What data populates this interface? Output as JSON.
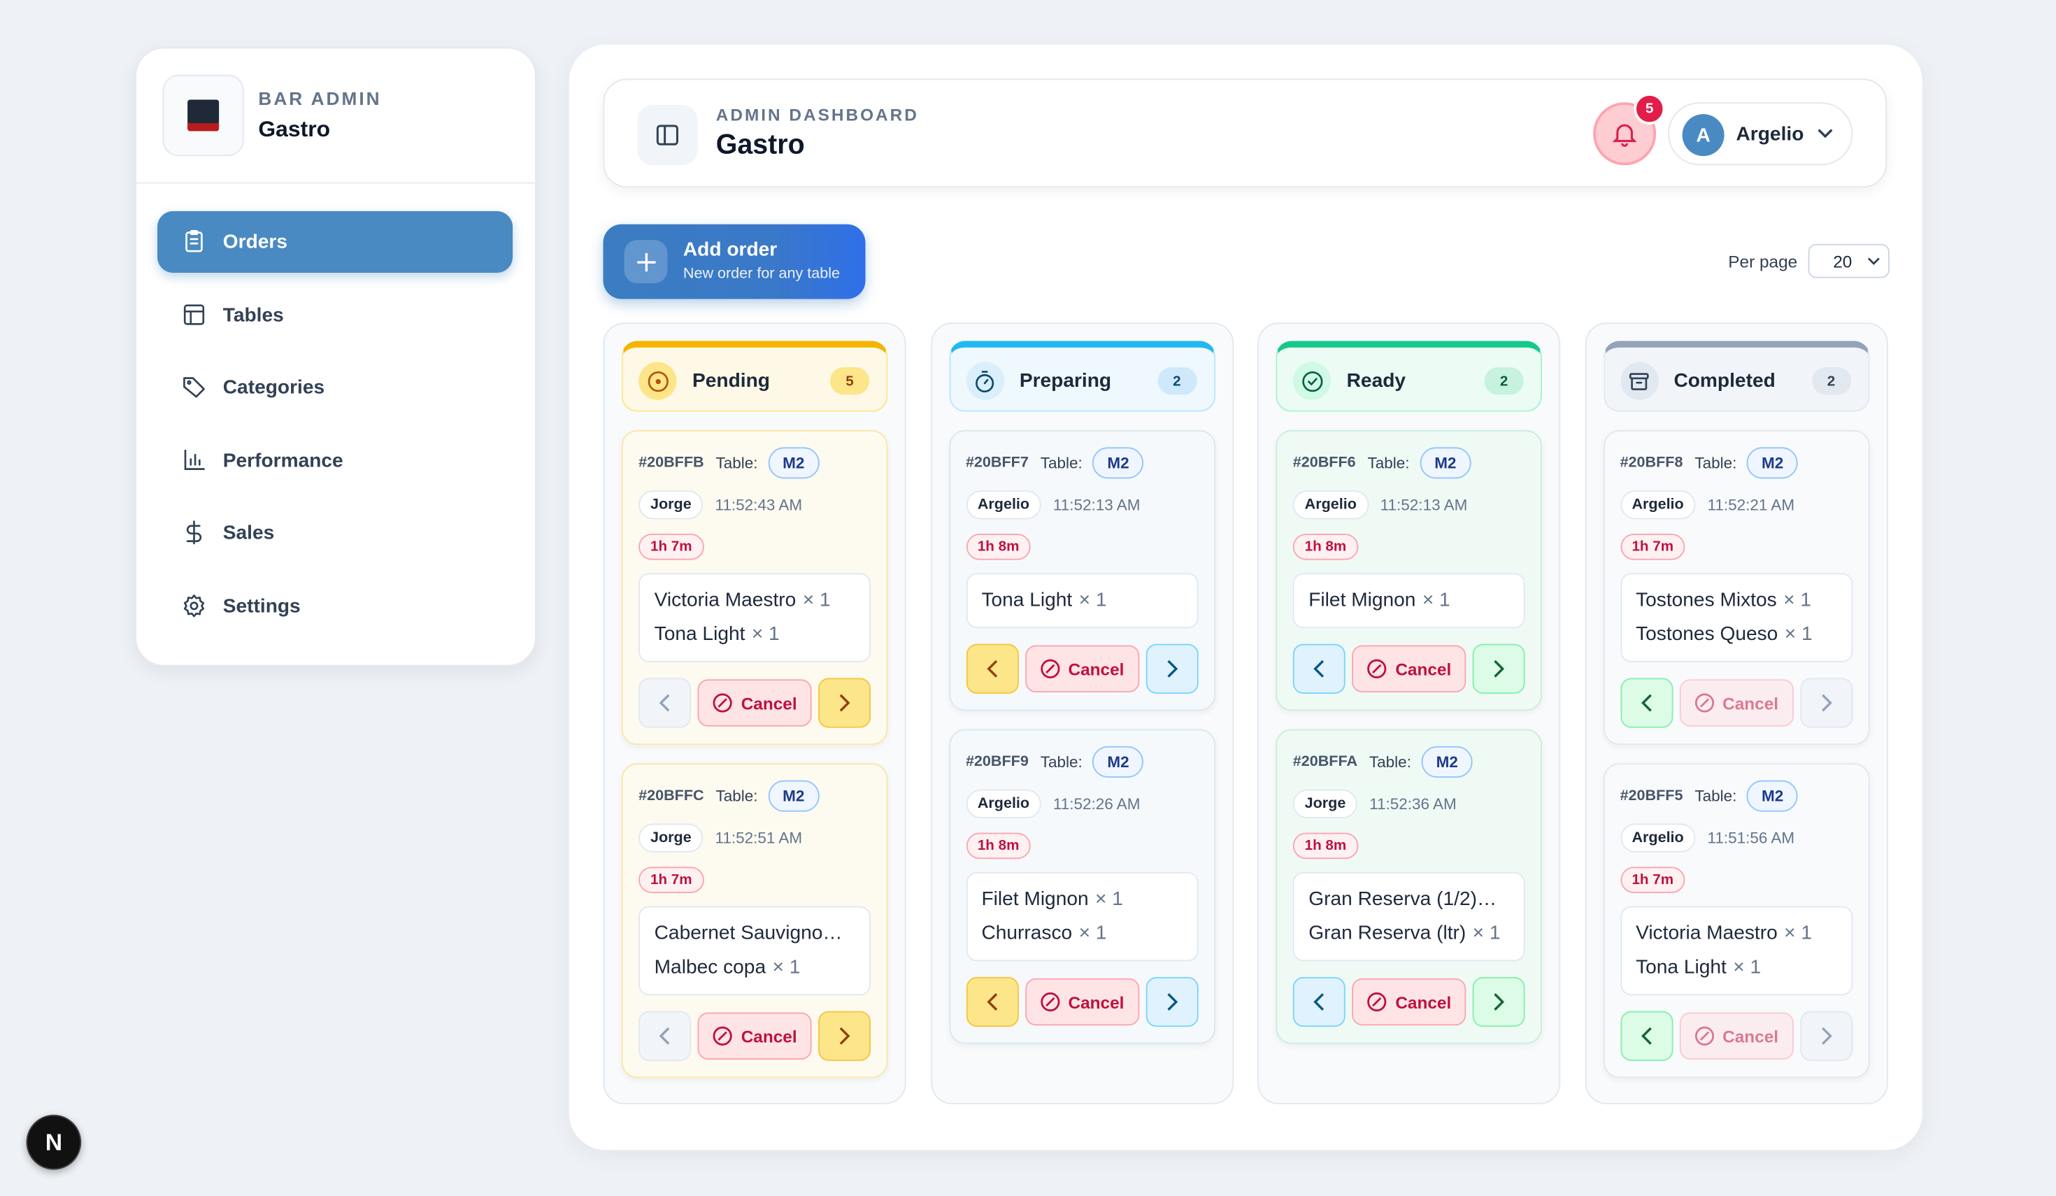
{
  "sidebar": {
    "brand_label": "BAR ADMIN",
    "brand_name": "Gastro",
    "nav": [
      "Orders",
      "Tables",
      "Categories",
      "Performance",
      "Sales",
      "Settings"
    ]
  },
  "header": {
    "label": "ADMIN DASHBOARD",
    "title": "Gastro",
    "notifications": 5,
    "user_initial": "A",
    "user_name": "Argelio"
  },
  "toolbar": {
    "add_title": "Add order",
    "add_subtitle": "New order for any table",
    "per_page_label": "Per page",
    "per_page": 20
  },
  "columns": [
    {
      "title": "Pending",
      "count": 5,
      "cards": [
        {
          "id": "#20BFFB",
          "table_label": "Table:",
          "table": "M2",
          "staff": "Jorge",
          "time": "11:52:43 AM",
          "elapsed": "1h 7m",
          "items": [
            {
              "name": "Victoria Maestro",
              "qty": "× 1"
            },
            {
              "name": "Tona Light",
              "qty": "× 1"
            }
          ],
          "cancel": "Cancel"
        },
        {
          "id": "#20BFFC",
          "table_label": "Table:",
          "table": "M2",
          "staff": "Jorge",
          "time": "11:52:51 AM",
          "elapsed": "1h 7m",
          "items": [
            {
              "name": "Cabernet Sauvigno…"
            },
            {
              "name": "Malbec copa",
              "qty": "× 1"
            }
          ],
          "cancel": "Cancel"
        }
      ]
    },
    {
      "title": "Preparing",
      "count": 2,
      "cards": [
        {
          "id": "#20BFF7",
          "table_label": "Table:",
          "table": "M2",
          "staff": "Argelio",
          "time": "11:52:13 AM",
          "elapsed": "1h 8m",
          "items": [
            {
              "name": "Tona Light",
              "qty": "× 1"
            }
          ],
          "cancel": "Cancel"
        },
        {
          "id": "#20BFF9",
          "table_label": "Table:",
          "table": "M2",
          "staff": "Argelio",
          "time": "11:52:26 AM",
          "elapsed": "1h 8m",
          "items": [
            {
              "name": "Filet Mignon",
              "qty": "× 1"
            },
            {
              "name": "Churrasco",
              "qty": "× 1"
            }
          ],
          "cancel": "Cancel"
        }
      ]
    },
    {
      "title": "Ready",
      "count": 2,
      "cards": [
        {
          "id": "#20BFF6",
          "table_label": "Table:",
          "table": "M2",
          "staff": "Argelio",
          "time": "11:52:13 AM",
          "elapsed": "1h 8m",
          "items": [
            {
              "name": "Filet Mignon",
              "qty": "× 1"
            }
          ],
          "cancel": "Cancel"
        },
        {
          "id": "#20BFFA",
          "table_label": "Table:",
          "table": "M2",
          "staff": "Jorge",
          "time": "11:52:36 AM",
          "elapsed": "1h 8m",
          "items": [
            {
              "name": "Gran Reserva (1/2)…"
            },
            {
              "name": "Gran Reserva (ltr)",
              "qty": "× 1"
            }
          ],
          "cancel": "Cancel"
        }
      ]
    },
    {
      "title": "Completed",
      "count": 2,
      "cards": [
        {
          "id": "#20BFF8",
          "table_label": "Table:",
          "table": "M2",
          "staff": "Argelio",
          "time": "11:52:21 AM",
          "elapsed": "1h 7m",
          "items": [
            {
              "name": "Tostones Mixtos",
              "qty": "× 1"
            },
            {
              "name": "Tostones Queso",
              "qty": "× 1"
            }
          ],
          "cancel": "Cancel"
        },
        {
          "id": "#20BFF5",
          "table_label": "Table:",
          "table": "M2",
          "staff": "Argelio",
          "time": "11:51:56 AM",
          "elapsed": "1h 7m",
          "items": [
            {
              "name": "Victoria Maestro",
              "qty": "× 1"
            },
            {
              "name": "Tona Light",
              "qty": "× 1"
            }
          ],
          "cancel": "Cancel"
        }
      ]
    }
  ]
}
